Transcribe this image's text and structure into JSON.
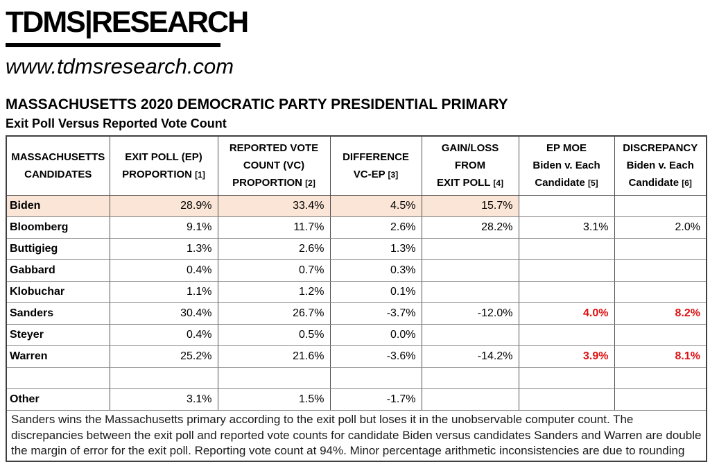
{
  "brand": {
    "logo": "TDMS|RESEARCH",
    "website": "www.tdmsresearch.com"
  },
  "page": {
    "title": "MASSACHUSETTS 2020 DEMOCRATIC PARTY PRESIDENTIAL PRIMARY",
    "subtitle": "Exit Poll Versus Reported Vote Count"
  },
  "colors": {
    "highlight": "#fbe5d6",
    "alert": "#e01010"
  },
  "table": {
    "columns": [
      {
        "id": "candidates",
        "lines": [
          "MASSACHUSETTS",
          "CANDIDATES"
        ]
      },
      {
        "id": "exit-poll",
        "lines": [
          "EXIT POLL (EP)",
          "PROPORTION [1]"
        ]
      },
      {
        "id": "vote-count",
        "lines": [
          "REPORTED VOTE",
          "COUNT (VC)",
          "PROPORTION [2]"
        ]
      },
      {
        "id": "difference",
        "lines": [
          "DIFFERENCE",
          "VC-EP  [3]"
        ]
      },
      {
        "id": "gain-loss",
        "lines": [
          "GAIN/LOSS",
          "FROM",
          "EXIT POLL [4]"
        ]
      },
      {
        "id": "ep-moe",
        "lines": [
          "EP MOE",
          "Biden v. Each",
          "Candidate [5]"
        ]
      },
      {
        "id": "discrepancy",
        "lines": [
          "DISCREPANCY",
          "Biden v. Each",
          "Candidate [6]"
        ]
      }
    ],
    "rows": [
      {
        "candidate": "Biden",
        "ep": "28.9%",
        "vc": "33.4%",
        "diff": "4.5%",
        "gain_loss": "15.7%",
        "ep_moe": "",
        "discrepancy": "",
        "highlight": true,
        "alert": false
      },
      {
        "candidate": "Bloomberg",
        "ep": "9.1%",
        "vc": "11.7%",
        "diff": "2.6%",
        "gain_loss": "28.2%",
        "ep_moe": "3.1%",
        "discrepancy": "2.0%",
        "highlight": false,
        "alert": false
      },
      {
        "candidate": "Buttigieg",
        "ep": "1.3%",
        "vc": "2.6%",
        "diff": "1.3%",
        "gain_loss": "",
        "ep_moe": "",
        "discrepancy": "",
        "highlight": false,
        "alert": false
      },
      {
        "candidate": "Gabbard",
        "ep": "0.4%",
        "vc": "0.7%",
        "diff": "0.3%",
        "gain_loss": "",
        "ep_moe": "",
        "discrepancy": "",
        "highlight": false,
        "alert": false
      },
      {
        "candidate": "Klobuchar",
        "ep": "1.1%",
        "vc": "1.2%",
        "diff": "0.1%",
        "gain_loss": "",
        "ep_moe": "",
        "discrepancy": "",
        "highlight": false,
        "alert": false
      },
      {
        "candidate": "Sanders",
        "ep": "30.4%",
        "vc": "26.7%",
        "diff": "-3.7%",
        "gain_loss": "-12.0%",
        "ep_moe": "4.0%",
        "discrepancy": "8.2%",
        "highlight": false,
        "alert": true
      },
      {
        "candidate": "Steyer",
        "ep": "0.4%",
        "vc": "0.5%",
        "diff": "0.0%",
        "gain_loss": "",
        "ep_moe": "",
        "discrepancy": "",
        "highlight": false,
        "alert": false
      },
      {
        "candidate": "Warren",
        "ep": "25.2%",
        "vc": "21.6%",
        "diff": "-3.6%",
        "gain_loss": "-14.2%",
        "ep_moe": "3.9%",
        "discrepancy": "8.1%",
        "highlight": false,
        "alert": true
      },
      {
        "candidate": "",
        "ep": "",
        "vc": "",
        "diff": "",
        "gain_loss": "",
        "ep_moe": "",
        "discrepancy": "",
        "highlight": false,
        "alert": false
      },
      {
        "candidate": "Other",
        "ep": "3.1%",
        "vc": "1.5%",
        "diff": "-1.7%",
        "gain_loss": "",
        "ep_moe": "",
        "discrepancy": "",
        "highlight": false,
        "alert": false
      }
    ],
    "footnote": "Sanders wins the Massachusetts primary according to the exit poll but loses it in the unobservable computer count. The discrepancies between the exit poll and reported vote counts for candidate Biden versus candidates Sanders and Warren are double the  margin of error for the exit poll. Reporting vote count at 94%. Minor percentage arithmetic inconsistencies are due to rounding"
  }
}
